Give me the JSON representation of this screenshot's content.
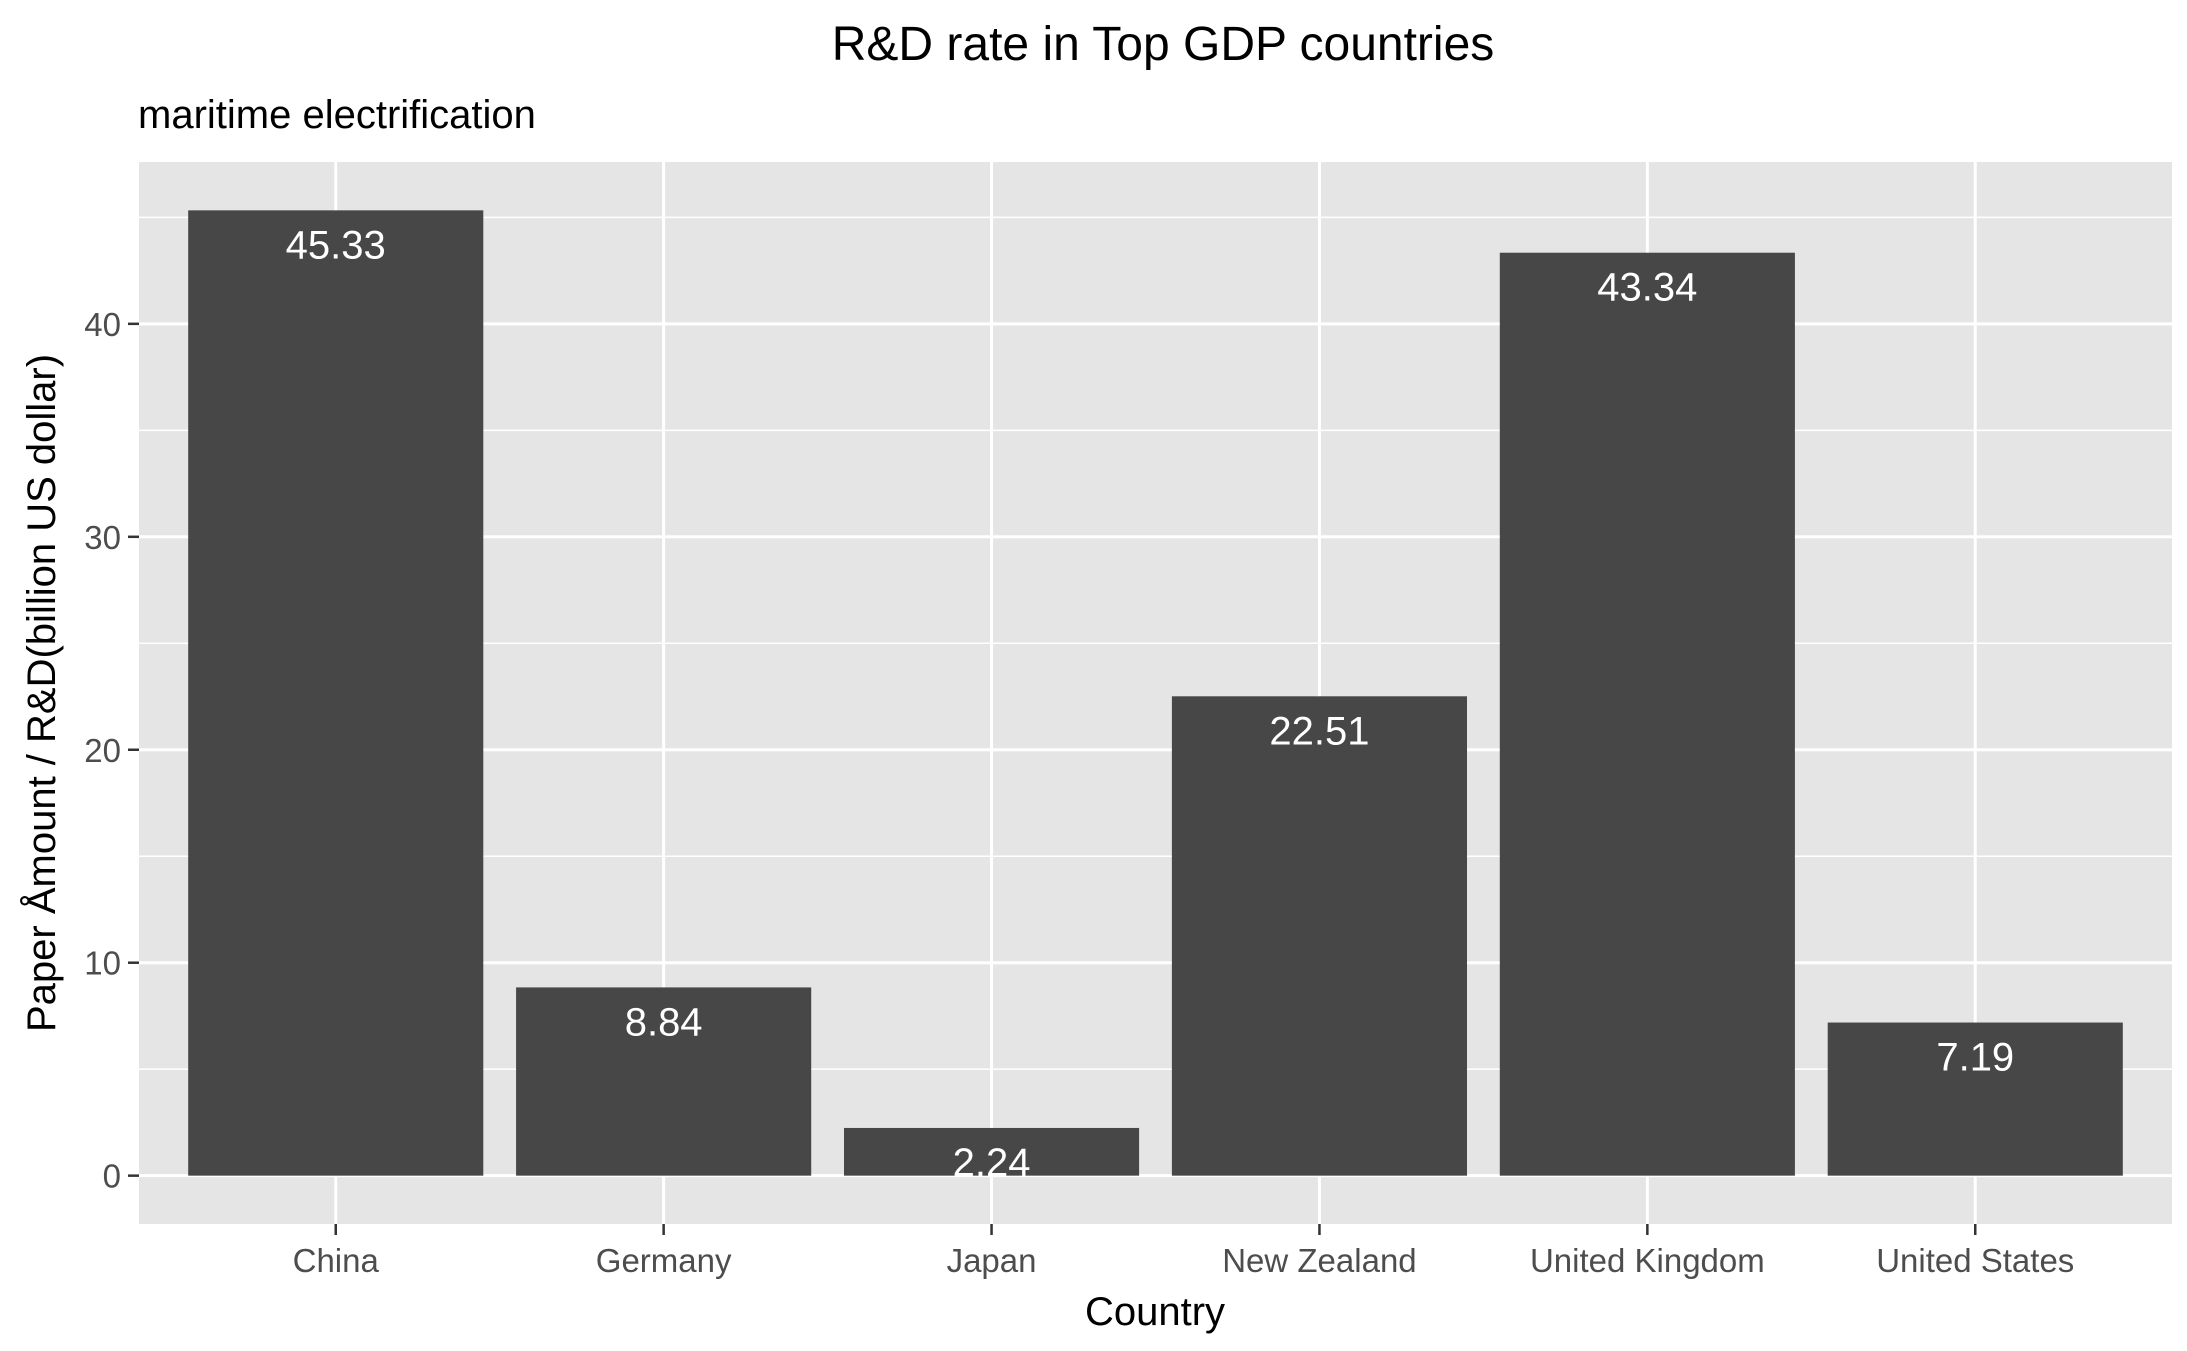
{
  "chart_data": {
    "type": "bar",
    "title": "R&D rate in Top GDP countries",
    "subtitle": "maritime electrification",
    "xlabel": "Country",
    "ylabel": "Paper Åmount / R&D(billion US dollar)",
    "categories": [
      "China",
      "Germany",
      "Japan",
      "New Zealand",
      "United Kingdom",
      "United States"
    ],
    "values": [
      45.33,
      8.84,
      2.24,
      22.51,
      43.34,
      7.19
    ],
    "data_labels": [
      "45.33",
      "8.84",
      "2.24",
      "22.51",
      "43.34",
      "7.19"
    ],
    "ylim": [
      -2.27,
      47.6
    ],
    "yticks": [
      0,
      10,
      20,
      30,
      40
    ],
    "yticks_minor": [
      5,
      15,
      25,
      35,
      45
    ],
    "grid": true,
    "legend": "none",
    "colors": {
      "bar": "#474747",
      "panel": "#e5e5e5",
      "grid": "#ffffff",
      "data_label": "#ffffff"
    }
  }
}
